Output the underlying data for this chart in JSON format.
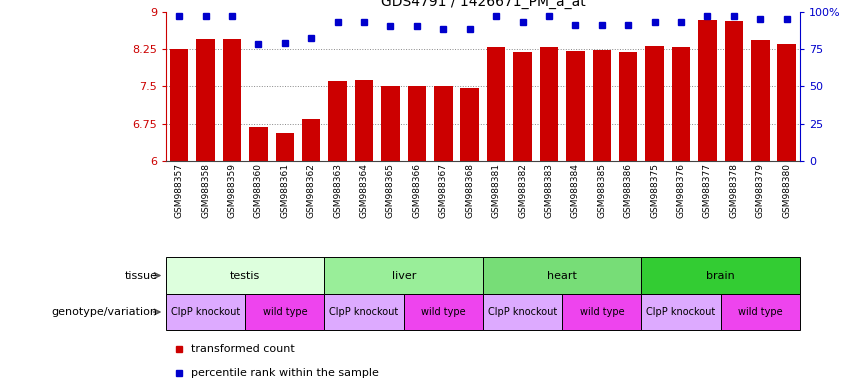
{
  "title": "GDS4791 / 1426671_PM_a_at",
  "samples": [
    "GSM988357",
    "GSM988358",
    "GSM988359",
    "GSM988360",
    "GSM988361",
    "GSM988362",
    "GSM988363",
    "GSM988364",
    "GSM988365",
    "GSM988366",
    "GSM988367",
    "GSM988368",
    "GSM988381",
    "GSM988382",
    "GSM988383",
    "GSM988384",
    "GSM988385",
    "GSM988386",
    "GSM988375",
    "GSM988376",
    "GSM988377",
    "GSM988378",
    "GSM988379",
    "GSM988380"
  ],
  "bar_values": [
    8.24,
    8.45,
    8.44,
    6.68,
    6.56,
    6.84,
    7.6,
    7.62,
    7.5,
    7.51,
    7.5,
    7.47,
    8.28,
    8.18,
    8.28,
    8.2,
    8.22,
    8.18,
    8.3,
    8.28,
    8.84,
    8.82,
    8.42,
    8.35
  ],
  "percentile_values": [
    97,
    97,
    97,
    78,
    79,
    82,
    93,
    93,
    90,
    90,
    88,
    88,
    97,
    93,
    97,
    91,
    91,
    91,
    93,
    93,
    97,
    97,
    95,
    95
  ],
  "ymin": 6,
  "ymax": 9,
  "yticks_left": [
    6,
    6.75,
    7.5,
    8.25,
    9
  ],
  "yticks_right": [
    0,
    25,
    50,
    75,
    100
  ],
  "bar_color": "#cc0000",
  "dot_color": "#0000cc",
  "gridline_color": "#888888",
  "tissue_groups": [
    {
      "label": "testis",
      "start": 0,
      "end": 6,
      "color": "#ddffdd"
    },
    {
      "label": "liver",
      "start": 6,
      "end": 12,
      "color": "#99ee99"
    },
    {
      "label": "heart",
      "start": 12,
      "end": 18,
      "color": "#77dd77"
    },
    {
      "label": "brain",
      "start": 18,
      "end": 24,
      "color": "#33cc33"
    }
  ],
  "genotype_groups": [
    {
      "label": "ClpP knockout",
      "start": 0,
      "end": 3,
      "color": "#ddaaff"
    },
    {
      "label": "wild type",
      "start": 3,
      "end": 6,
      "color": "#ee44ee"
    },
    {
      "label": "ClpP knockout",
      "start": 6,
      "end": 9,
      "color": "#ddaaff"
    },
    {
      "label": "wild type",
      "start": 9,
      "end": 12,
      "color": "#ee44ee"
    },
    {
      "label": "ClpP knockout",
      "start": 12,
      "end": 15,
      "color": "#ddaaff"
    },
    {
      "label": "wild type",
      "start": 15,
      "end": 18,
      "color": "#ee44ee"
    },
    {
      "label": "ClpP knockout",
      "start": 18,
      "end": 21,
      "color": "#ddaaff"
    },
    {
      "label": "wild type",
      "start": 21,
      "end": 24,
      "color": "#ee44ee"
    }
  ],
  "tissue_label": "tissue",
  "genotype_label": "genotype/variation",
  "legend_bar_label": "transformed count",
  "legend_dot_label": "percentile rank within the sample",
  "bg_color": "#ffffff"
}
